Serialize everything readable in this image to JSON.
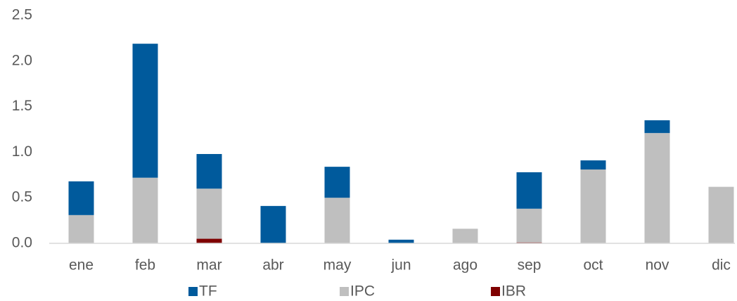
{
  "chart_data": {
    "type": "bar",
    "stacked": true,
    "categories": [
      "ene",
      "feb",
      "mar",
      "abr",
      "may",
      "jun",
      "ago",
      "sep",
      "oct",
      "nov",
      "dic"
    ],
    "series": [
      {
        "name": "TF",
        "color": "#005a9c",
        "values": [
          0.37,
          1.47,
          0.38,
          0.41,
          0.34,
          0.04,
          0,
          0.4,
          0.1,
          0.14,
          0
        ]
      },
      {
        "name": "IPC",
        "color": "#bfbfbf",
        "values": [
          0.31,
          0.72,
          0.55,
          0,
          0.5,
          0,
          0.16,
          0.37,
          0.81,
          1.21,
          0.62
        ]
      },
      {
        "name": "IBR",
        "color": "#7f0000",
        "values": [
          0,
          0,
          0.05,
          0,
          0,
          0,
          0,
          0.01,
          0,
          0,
          0
        ]
      }
    ],
    "ylim": [
      0,
      2.5
    ],
    "yticks": [
      {
        "value": 0,
        "label": "0.0"
      },
      0.5,
      {
        "value": 1,
        "label": "1.0"
      },
      1.5,
      {
        "value": 2,
        "label": "2.0"
      },
      2.5
    ],
    "grid": false,
    "legend": "bottom"
  }
}
